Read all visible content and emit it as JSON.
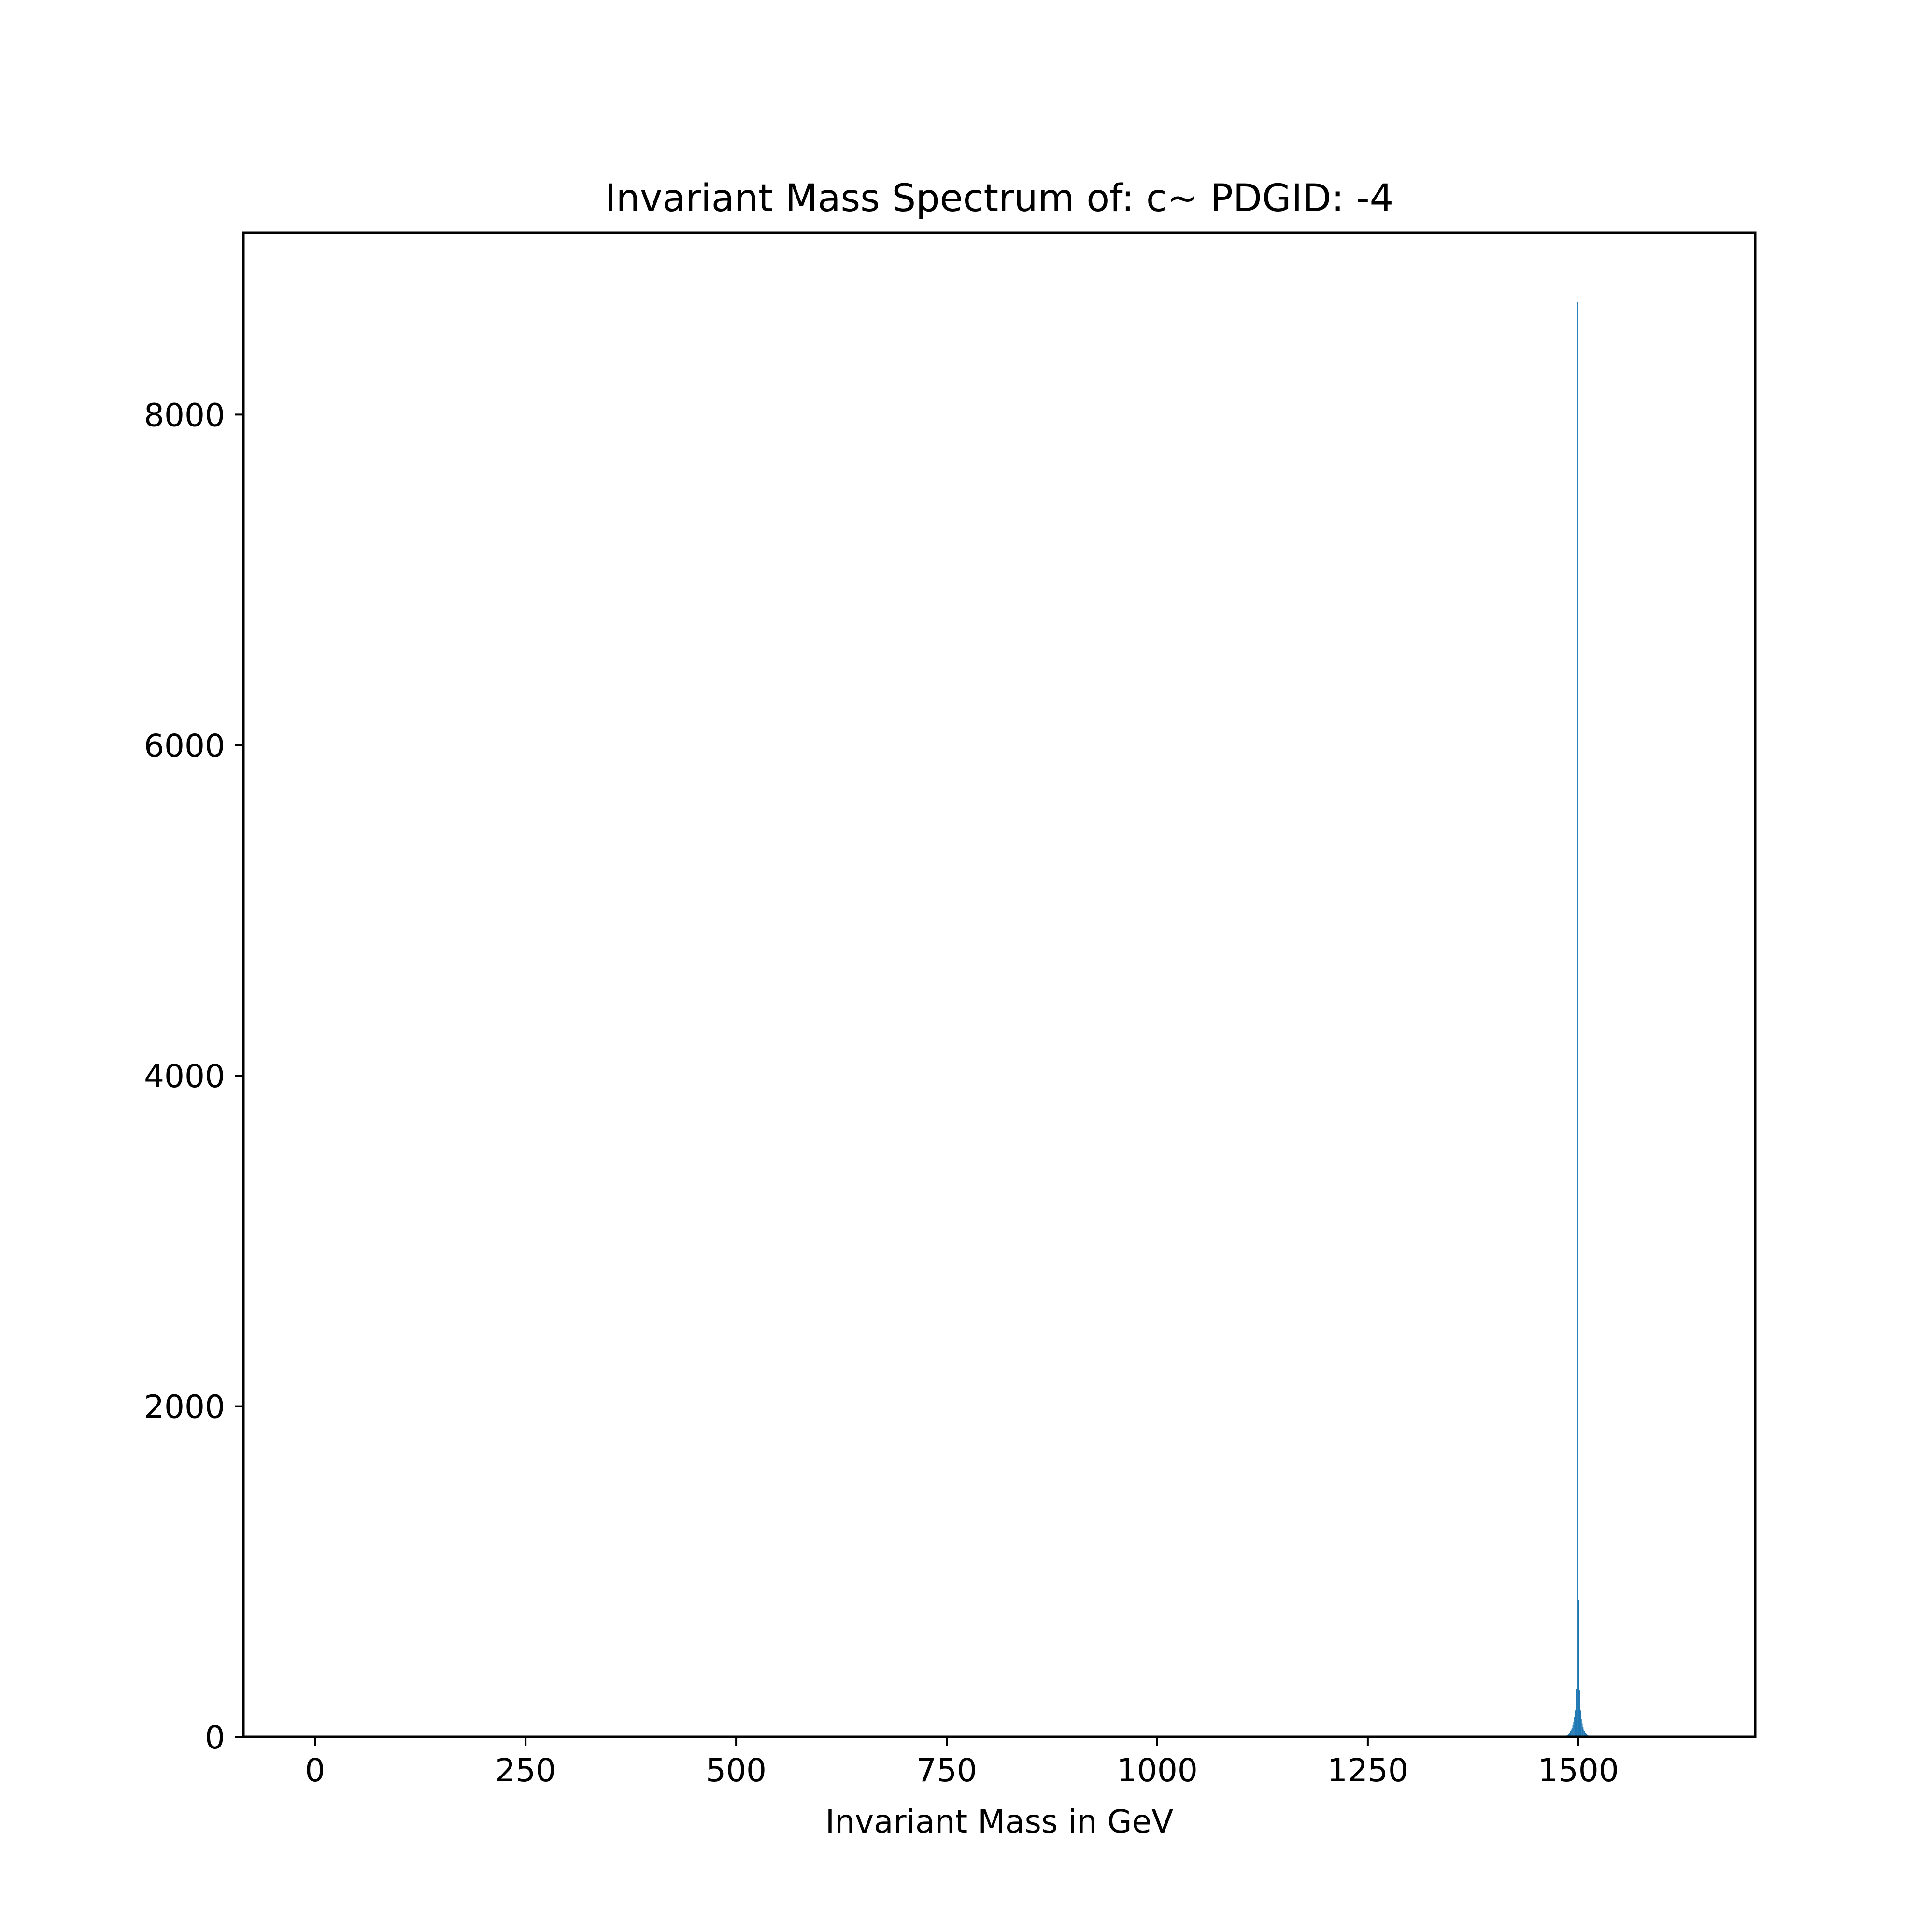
{
  "chart_data": {
    "type": "bar",
    "title": "Invariant Mass Spectrum of: c~ PDGID: -4",
    "xlabel": "Invariant Mass in GeV",
    "ylabel": "",
    "xlim": [
      -85,
      1710
    ],
    "ylim": [
      0,
      9100
    ],
    "x_ticks": [
      0,
      250,
      500,
      750,
      1000,
      1250,
      1500
    ],
    "x_tick_labels": [
      "0",
      "250",
      "500",
      "750",
      "1000",
      "1250",
      "1500"
    ],
    "y_ticks": [
      0,
      2000,
      4000,
      6000,
      8000
    ],
    "y_tick_labels": [
      "0",
      "2000",
      "4000",
      "6000",
      "8000"
    ],
    "bar_color": "#1f77b4",
    "grid": false,
    "legend": "none",
    "bin_width": 1.0,
    "bins": [
      {
        "x": 1485,
        "y": 5
      },
      {
        "x": 1486,
        "y": 8
      },
      {
        "x": 1487,
        "y": 10
      },
      {
        "x": 1488,
        "y": 15
      },
      {
        "x": 1489,
        "y": 25
      },
      {
        "x": 1490,
        "y": 35
      },
      {
        "x": 1491,
        "y": 45
      },
      {
        "x": 1492,
        "y": 55
      },
      {
        "x": 1493,
        "y": 70
      },
      {
        "x": 1494,
        "y": 90
      },
      {
        "x": 1495,
        "y": 120
      },
      {
        "x": 1496,
        "y": 160
      },
      {
        "x": 1497,
        "y": 290
      },
      {
        "x": 1498,
        "y": 1100
      },
      {
        "x": 1499,
        "y": 8680
      },
      {
        "x": 1500,
        "y": 830
      },
      {
        "x": 1501,
        "y": 280
      },
      {
        "x": 1502,
        "y": 160
      },
      {
        "x": 1503,
        "y": 110
      },
      {
        "x": 1504,
        "y": 80
      },
      {
        "x": 1505,
        "y": 60
      },
      {
        "x": 1506,
        "y": 45
      },
      {
        "x": 1507,
        "y": 35
      },
      {
        "x": 1508,
        "y": 25
      },
      {
        "x": 1509,
        "y": 18
      },
      {
        "x": 1510,
        "y": 12
      },
      {
        "x": 1511,
        "y": 8
      },
      {
        "x": 1512,
        "y": 5
      },
      {
        "x": 1513,
        "y": 3
      }
    ]
  }
}
